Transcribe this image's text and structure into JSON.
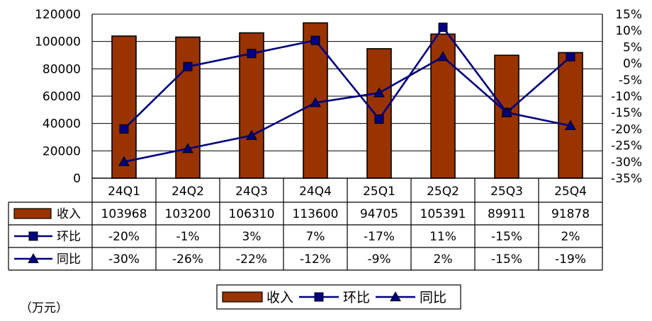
{
  "chart_data": {
    "type": "bar",
    "categories": [
      "24Q1",
      "24Q2",
      "24Q3",
      "24Q4",
      "25Q1",
      "25Q2",
      "25Q3",
      "25Q4"
    ],
    "series": [
      {
        "name": "收入",
        "kind": "bar",
        "axis": "left",
        "values": [
          103968,
          103200,
          106310,
          113600,
          94705,
          105391,
          89911,
          91878
        ],
        "labels": [
          "103968",
          "103200",
          "106310",
          "113600",
          "94705",
          "105391",
          "89911",
          "91878"
        ],
        "color": "#993300"
      },
      {
        "name": "环比",
        "kind": "line",
        "marker": "square",
        "axis": "right",
        "values": [
          -20,
          -1,
          3,
          7,
          -17,
          11,
          -15,
          2
        ],
        "labels": [
          "-20%",
          "-1%",
          "3%",
          "7%",
          "-17%",
          "11%",
          "-15%",
          "2%"
        ],
        "color": "#000080"
      },
      {
        "name": "同比",
        "kind": "line",
        "marker": "triangle",
        "axis": "right",
        "values": [
          -30,
          -26,
          -22,
          -12,
          -9,
          2,
          -15,
          -19
        ],
        "labels": [
          "-30%",
          "-26%",
          "-22%",
          "-12%",
          "-9%",
          "2%",
          "-15%",
          "-19%"
        ],
        "color": "#000080"
      }
    ],
    "y_left": {
      "ylim": [
        0,
        120000
      ],
      "ticks": [
        0,
        20000,
        40000,
        60000,
        80000,
        100000,
        120000
      ],
      "tick_labels": [
        "0",
        "20000",
        "40000",
        "60000",
        "80000",
        "100000",
        "120000"
      ]
    },
    "y_right": {
      "ylim": [
        -35,
        15
      ],
      "ticks": [
        -35,
        -30,
        -25,
        -20,
        -15,
        -10,
        -5,
        0,
        5,
        10,
        15
      ],
      "tick_labels": [
        "-35%",
        "-30%",
        "-25%",
        "-20%",
        "-15%",
        "-10%",
        "-5%",
        "0%",
        "5%",
        "10%",
        "15%"
      ]
    },
    "unit_label": "（万元）",
    "grid": true,
    "legend_position": "bottom",
    "data_table": true
  }
}
